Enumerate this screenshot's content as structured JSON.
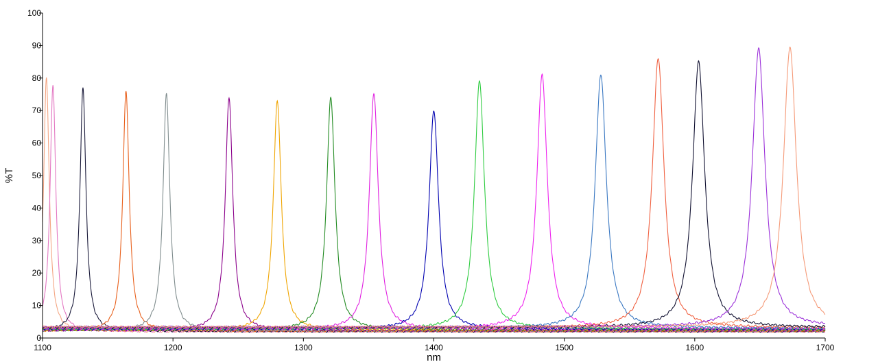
{
  "chart_data": {
    "type": "line",
    "title": "",
    "xlabel": "nm",
    "ylabel": "%T",
    "xlim": [
      1100,
      1700
    ],
    "ylim": [
      0,
      100
    ],
    "xticks": [
      1100,
      1200,
      1300,
      1400,
      1500,
      1600,
      1700
    ],
    "yticks": [
      0,
      10,
      20,
      30,
      40,
      50,
      60,
      70,
      80,
      90,
      100
    ],
    "grid": false,
    "legend": "none",
    "series": [
      {
        "peak_nm": 1103,
        "peak_T": 80,
        "color": "#f4a582"
      },
      {
        "peak_nm": 1108,
        "peak_T": 78,
        "color": "#e377c2"
      },
      {
        "peak_nm": 1131,
        "peak_T": 77,
        "color": "#1a1a3a"
      },
      {
        "peak_nm": 1164,
        "peak_T": 76,
        "color": "#e8601c"
      },
      {
        "peak_nm": 1195,
        "peak_T": 75,
        "color": "#7f8c8d"
      },
      {
        "peak_nm": 1243,
        "peak_T": 74,
        "color": "#8b008b"
      },
      {
        "peak_nm": 1280,
        "peak_T": 73,
        "color": "#f0a500"
      },
      {
        "peak_nm": 1321,
        "peak_T": 74,
        "color": "#228b22"
      },
      {
        "peak_nm": 1354,
        "peak_T": 75.5,
        "color": "#e020e0"
      },
      {
        "peak_nm": 1400,
        "peak_T": 70,
        "color": "#0000b0"
      },
      {
        "peak_nm": 1435,
        "peak_T": 79,
        "color": "#2ecc40"
      },
      {
        "peak_nm": 1483,
        "peak_T": 81,
        "color": "#ee22ee"
      },
      {
        "peak_nm": 1528,
        "peak_T": 81,
        "color": "#3a78c2"
      },
      {
        "peak_nm": 1572,
        "peak_T": 86,
        "color": "#f06040"
      },
      {
        "peak_nm": 1603,
        "peak_T": 85,
        "color": "#101030"
      },
      {
        "peak_nm": 1649,
        "peak_T": 89,
        "color": "#9b30d9"
      },
      {
        "peak_nm": 1673,
        "peak_T": 89.5,
        "color": "#f59a78"
      }
    ]
  }
}
